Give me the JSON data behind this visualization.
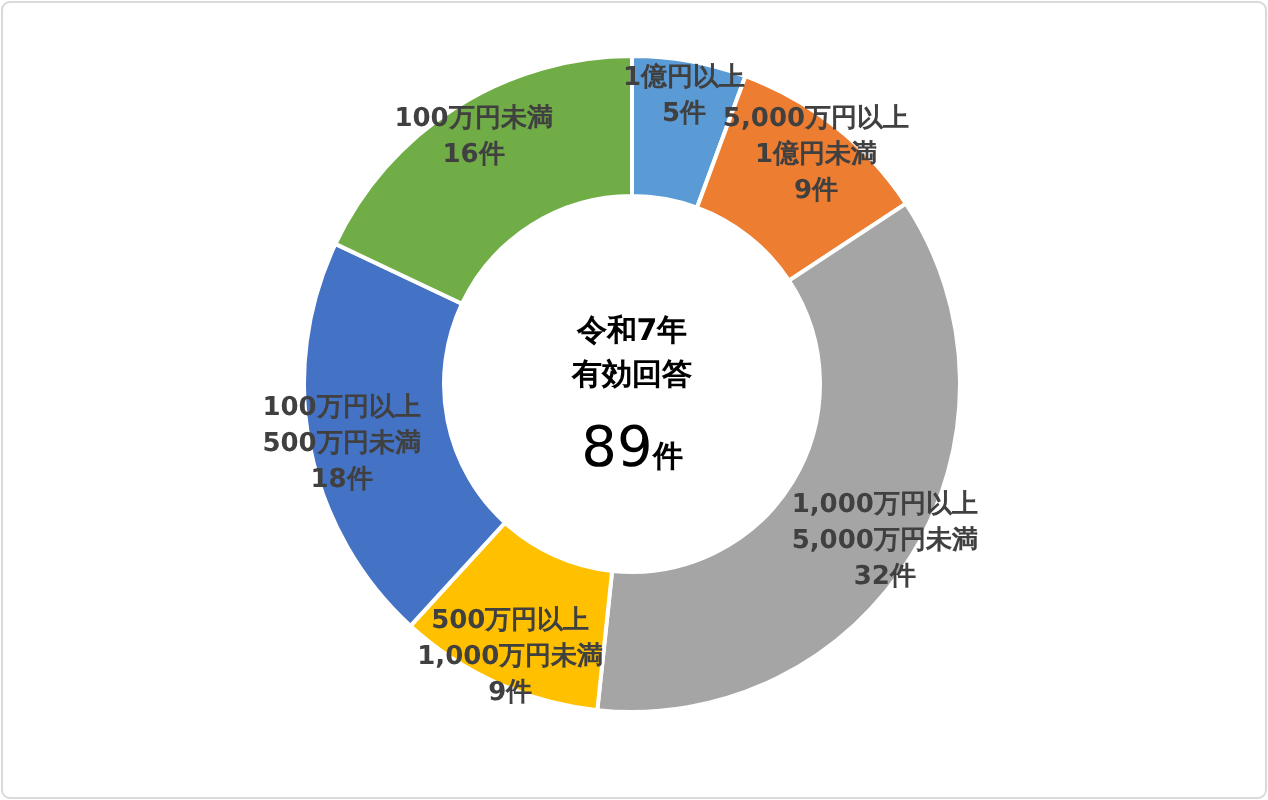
{
  "chart_data": {
    "type": "donut",
    "title": "令和7年",
    "subtitle": "有効回答",
    "annotations": [
      "89件"
    ],
    "categories": [
      "1億円以上",
      "5,000万円以上\n1億円未満",
      "1,000万円以上\n5,000万円未満",
      "500万円以上\n1,000万円未満",
      "100万円以上\n500万円未満",
      "100万円未満"
    ],
    "values": [
      5,
      9,
      32,
      9,
      18,
      16
    ],
    "value_labels": [
      "5件",
      "9件",
      "32件",
      "9件",
      "18件",
      "16件"
    ],
    "colors": [
      "#5b9bd5",
      "#ed7d31",
      "#a5a5a5",
      "#ffc000",
      "#4472c4",
      "#70ad47"
    ]
  }
}
